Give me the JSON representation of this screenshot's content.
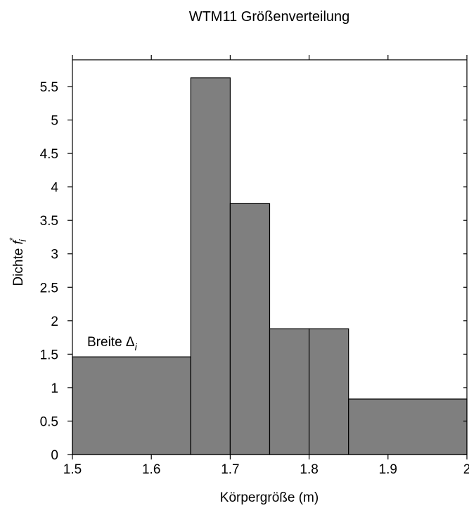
{
  "chart_data": {
    "type": "bar",
    "title": "WTM11 Größenverteilung",
    "xlabel": "Körpergröße (m)",
    "ylabel": "Dichte ",
    "ylabel_symbol": "f",
    "ylabel_sup": "*",
    "ylabel_sub": "i",
    "annotation": {
      "text": "Breite ",
      "symbol": "Δ",
      "sub": "i"
    },
    "xlim": [
      1.5,
      2.0
    ],
    "ylim": [
      0,
      5.9
    ],
    "xticks": [
      "1.5",
      "1.6",
      "1.7",
      "1.8",
      "1.9",
      "2"
    ],
    "yticks": [
      "0",
      "0.5",
      "1",
      "1.5",
      "2",
      "2.5",
      "3",
      "3.5",
      "4",
      "4.5",
      "5",
      "5.5"
    ],
    "bins": [
      {
        "x0": 1.5,
        "x1": 1.65,
        "value": 1.46
      },
      {
        "x0": 1.65,
        "x1": 1.7,
        "value": 5.63
      },
      {
        "x0": 1.7,
        "x1": 1.75,
        "value": 3.75
      },
      {
        "x0": 1.75,
        "x1": 1.8,
        "value": 1.88
      },
      {
        "x0": 1.8,
        "x1": 1.85,
        "value": 1.88
      },
      {
        "x0": 1.85,
        "x1": 2.0,
        "value": 0.83
      }
    ],
    "bar_color": "#7f7f7f",
    "grid": false
  }
}
